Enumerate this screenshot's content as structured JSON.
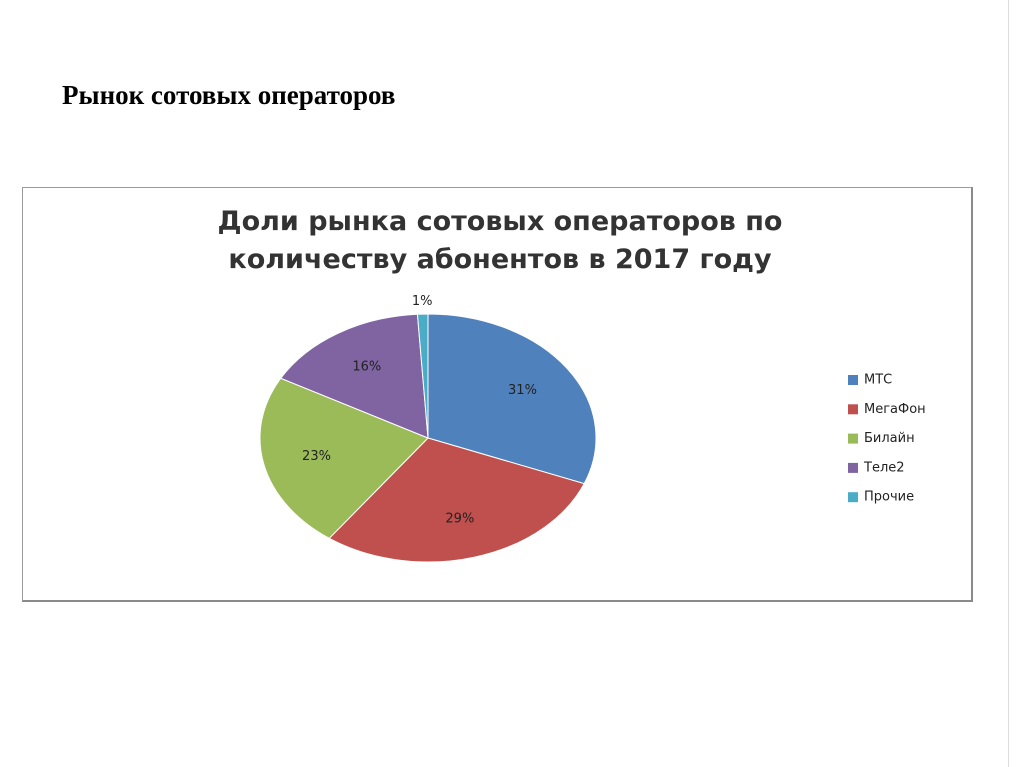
{
  "heading": "Рынок сотовых операторов",
  "chart_data": {
    "type": "pie",
    "title": "Доли рынка сотовых операторов по количеству абонентов в 2017 году",
    "categories": [
      "МТС",
      "МегаФон",
      "Билайн",
      "Теле2",
      "Прочие"
    ],
    "values": [
      31,
      29,
      23,
      16,
      1
    ],
    "value_labels": [
      "31%",
      "29%",
      "23%",
      "16%",
      "1%"
    ],
    "colors": [
      "#4f81bd",
      "#c0504d",
      "#9bbb59",
      "#8064a2",
      "#4bacc6"
    ],
    "legend": "right"
  }
}
